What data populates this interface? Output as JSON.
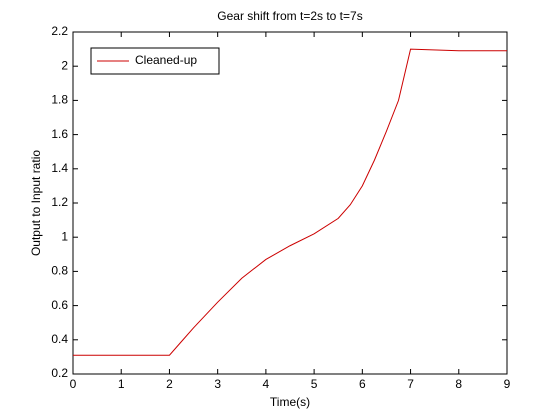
{
  "chart_data": {
    "type": "line",
    "title": "Gear shift from t=2s to t=7s",
    "xlabel": "Time(s)",
    "ylabel": "Output to Input ratio",
    "x": [
      0,
      1,
      2,
      2.25,
      2.5,
      3,
      3.5,
      4,
      4.5,
      5,
      5.5,
      5.75,
      6,
      6.25,
      6.5,
      6.75,
      7,
      8,
      9
    ],
    "series": [
      {
        "name": "Cleaned-up",
        "color": "#cc0000",
        "values": [
          0.31,
          0.31,
          0.31,
          0.39,
          0.47,
          0.62,
          0.76,
          0.87,
          0.95,
          1.02,
          1.11,
          1.19,
          1.3,
          1.45,
          1.62,
          1.8,
          2.1,
          2.09,
          2.09
        ]
      }
    ],
    "xlim": [
      0,
      9
    ],
    "xticks": [
      0,
      1,
      2,
      3,
      4,
      5,
      6,
      7,
      8,
      9
    ],
    "ylim": [
      0.2,
      2.2
    ],
    "yticks": [
      0.2,
      0.4,
      0.6,
      0.8,
      1,
      1.2,
      1.4,
      1.6,
      1.8,
      2,
      2.2
    ],
    "grid": false,
    "legend": "upper-left"
  }
}
